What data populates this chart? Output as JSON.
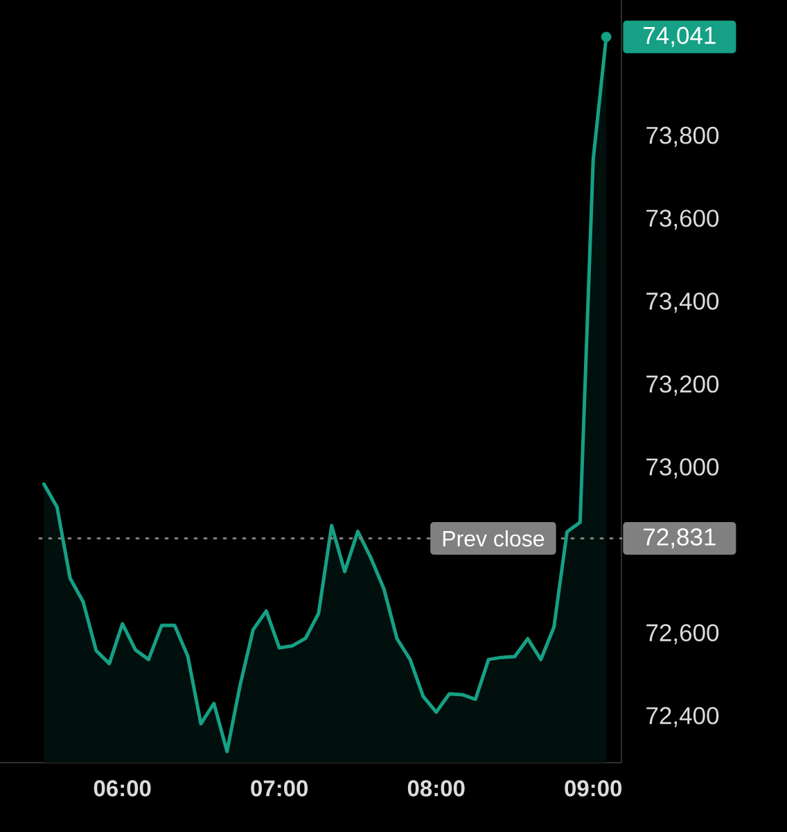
{
  "chart_data": {
    "type": "area",
    "xlim": [
      5.22,
      9.18
    ],
    "ylim": [
      72290,
      74130
    ],
    "xticks": [
      {
        "value": 6,
        "label": "06:00"
      },
      {
        "value": 7,
        "label": "07:00"
      },
      {
        "value": 8,
        "label": "08:00"
      },
      {
        "value": 9,
        "label": "09:00"
      }
    ],
    "yticks": [
      {
        "value": 72400,
        "label": "72,400"
      },
      {
        "value": 72600,
        "label": "72,600"
      },
      {
        "value": 73000,
        "label": "73,000"
      },
      {
        "value": 73200,
        "label": "73,200"
      },
      {
        "value": 73400,
        "label": "73,400"
      },
      {
        "value": 73600,
        "label": "73,600"
      },
      {
        "value": 73800,
        "label": "73,800"
      }
    ],
    "series": [
      {
        "color": "#16a085",
        "x": [
          5.5,
          5.5833,
          5.6667,
          5.75,
          5.8333,
          5.9167,
          6,
          6.0833,
          6.1667,
          6.25,
          6.3333,
          6.4167,
          6.5,
          6.5833,
          6.6667,
          6.75,
          6.8333,
          6.9167,
          7,
          7.0833,
          7.1667,
          7.25,
          7.3333,
          7.4167,
          7.5,
          7.5833,
          7.6667,
          7.75,
          7.8333,
          7.9167,
          8,
          8.0833,
          8.1667,
          8.25,
          8.3333,
          8.4167,
          8.5,
          8.5833,
          8.6667,
          8.75,
          8.8333,
          8.9167,
          9,
          9.0833
        ],
        "values": [
          72962,
          72907,
          72735,
          72678,
          72560,
          72529,
          72625,
          72562,
          72539,
          72621,
          72621,
          72547,
          72384,
          72433,
          72317,
          72477,
          72611,
          72656,
          72567,
          72572,
          72590,
          72650,
          72862,
          72751,
          72848,
          72784,
          72709,
          72589,
          72539,
          72450,
          72412,
          72456,
          72454,
          72443,
          72539,
          72544,
          72546,
          72589,
          72539,
          72617,
          72847,
          72870,
          73745,
          74041
        ]
      },
      {
        "type": "scatter",
        "color": "#16a085",
        "marker": "circle",
        "x": [
          9.0833
        ],
        "values": [
          74041
        ],
        "value_labels": [
          "74,041"
        ]
      }
    ],
    "ref_lines": [
      {
        "axis": "y",
        "value": 72831,
        "label": "Prev close",
        "color": "#808080",
        "line_style": "dotted"
      }
    ],
    "annotations": [
      "72,831"
    ]
  }
}
